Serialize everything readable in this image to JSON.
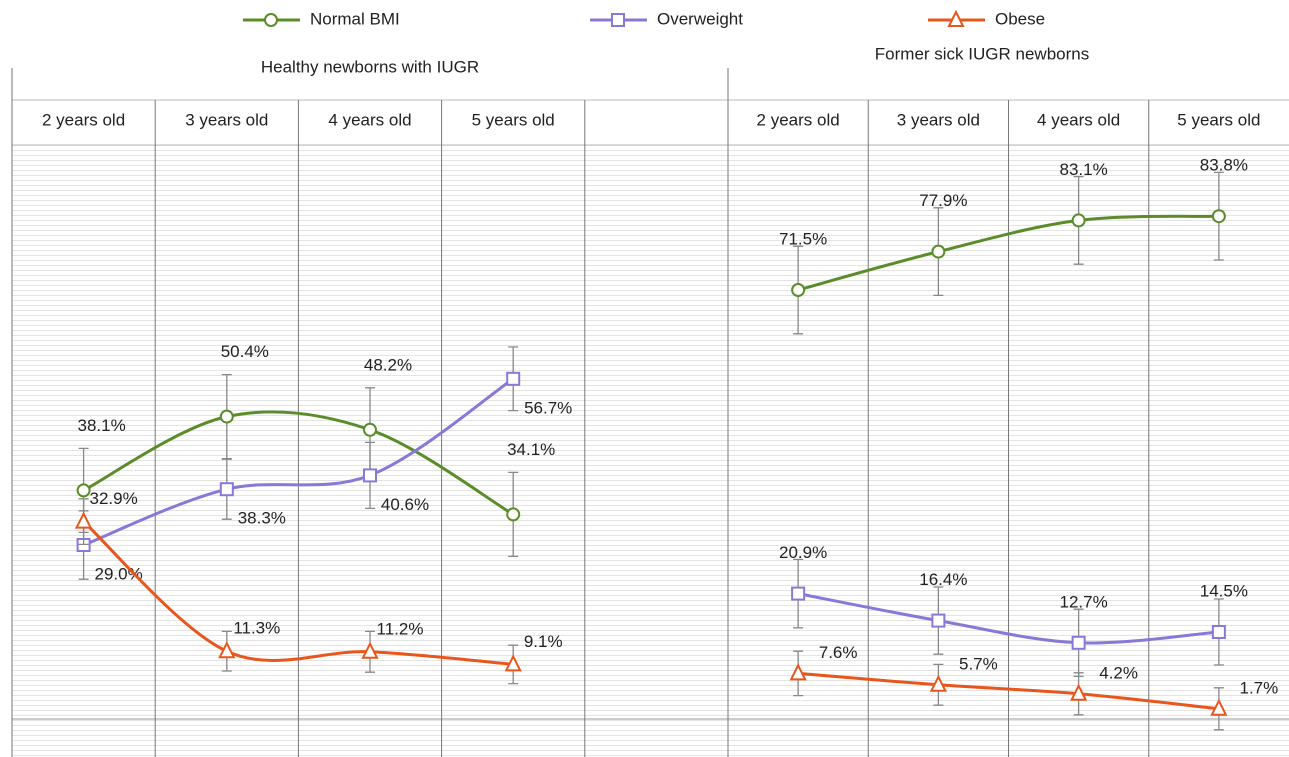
{
  "chart_data": [
    {
      "type": "line",
      "title": "Healthy newborns with IUGR",
      "categories": [
        "2 years old",
        "3 years old",
        "4 years old",
        "5 years old"
      ],
      "ylim": [
        0,
        100
      ],
      "series": [
        {
          "name": "Normal BMI",
          "color": "#5b8c2a",
          "marker": "circle",
          "values": [
            38.1,
            50.4,
            48.2,
            34.1
          ],
          "value_labels": [
            "38.1%",
            "50.4%",
            "48.2%",
            "34.1%"
          ],
          "errors": [
            7,
            7,
            7,
            7
          ]
        },
        {
          "name": "Overweight",
          "color": "#8878d8",
          "marker": "square",
          "values": [
            29.0,
            38.3,
            40.6,
            56.7
          ],
          "value_labels": [
            "29.0%",
            "38.3%",
            "40.6%",
            "56.7%"
          ],
          "errors": [
            5.7,
            5,
            5.5,
            5.3
          ]
        },
        {
          "name": "Obese",
          "color": "#e8561c",
          "marker": "triangle",
          "values": [
            32.9,
            11.3,
            11.2,
            9.1
          ],
          "value_labels": [
            "32.9%",
            "11.3%",
            "11.2%",
            "9.1%"
          ],
          "errors": [
            3.8,
            3.3,
            3.4,
            3.2
          ]
        }
      ]
    },
    {
      "type": "line",
      "title": "Former sick IUGR newborns",
      "categories": [
        "2 years old",
        "3 years old",
        "4 years old",
        "5 years old"
      ],
      "ylim": [
        0,
        100
      ],
      "series": [
        {
          "name": "Normal BMI",
          "color": "#5b8c2a",
          "marker": "circle",
          "values": [
            71.5,
            77.9,
            83.1,
            83.8
          ],
          "value_labels": [
            "71.5%",
            "77.9%",
            "83.1%",
            "83.8%"
          ],
          "errors": [
            7.3,
            7.3,
            7.3,
            7.3
          ]
        },
        {
          "name": "Overweight",
          "color": "#8878d8",
          "marker": "square",
          "values": [
            20.9,
            16.4,
            12.7,
            14.5
          ],
          "value_labels": [
            "20.9%",
            "16.4%",
            "12.7%",
            "14.5%"
          ],
          "errors": [
            5.7,
            5.6,
            5.6,
            5.5
          ]
        },
        {
          "name": "Obese",
          "color": "#e8561c",
          "marker": "triangle",
          "values": [
            7.6,
            5.7,
            4.2,
            1.7
          ],
          "value_labels": [
            "7.6%",
            "5.7%",
            "4.2%",
            "1.7%"
          ],
          "errors": [
            3.7,
            3.4,
            3.5,
            3.5
          ]
        }
      ]
    }
  ]
}
